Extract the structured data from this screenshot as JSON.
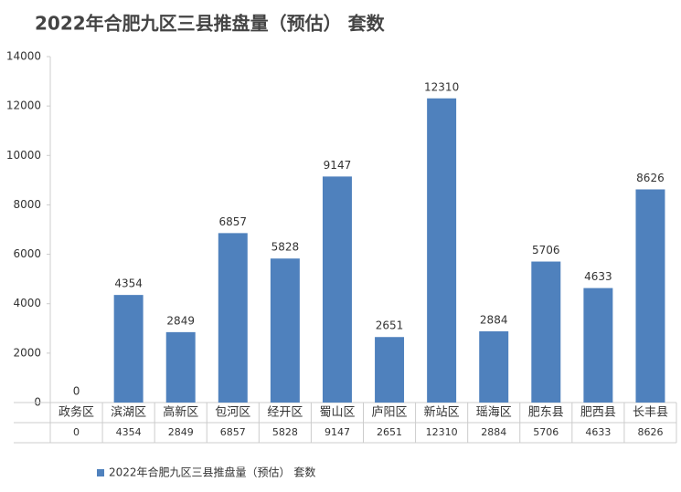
{
  "chart_data": {
    "type": "bar",
    "title": "2022年合肥九区三县推盘量（预估） 套数",
    "categories": [
      "政务区",
      "滨湖区",
      "高新区",
      "包河区",
      "经开区",
      "蜀山区",
      "庐阳区",
      "新站区",
      "瑶海区",
      "肥东县",
      "肥西县",
      "长丰县"
    ],
    "series": [
      {
        "name": "2022年合肥九区三县推盘量（预估） 套数",
        "color": "#4f81bd",
        "values": [
          0,
          4354,
          2849,
          6857,
          5828,
          9147,
          2651,
          12310,
          2884,
          5706,
          4633,
          8626
        ]
      }
    ],
    "ylim": [
      0,
      14000
    ],
    "yticks": [
      0,
      2000,
      4000,
      6000,
      8000,
      10000,
      12000,
      14000
    ],
    "grid": false,
    "legend": "bottom"
  }
}
